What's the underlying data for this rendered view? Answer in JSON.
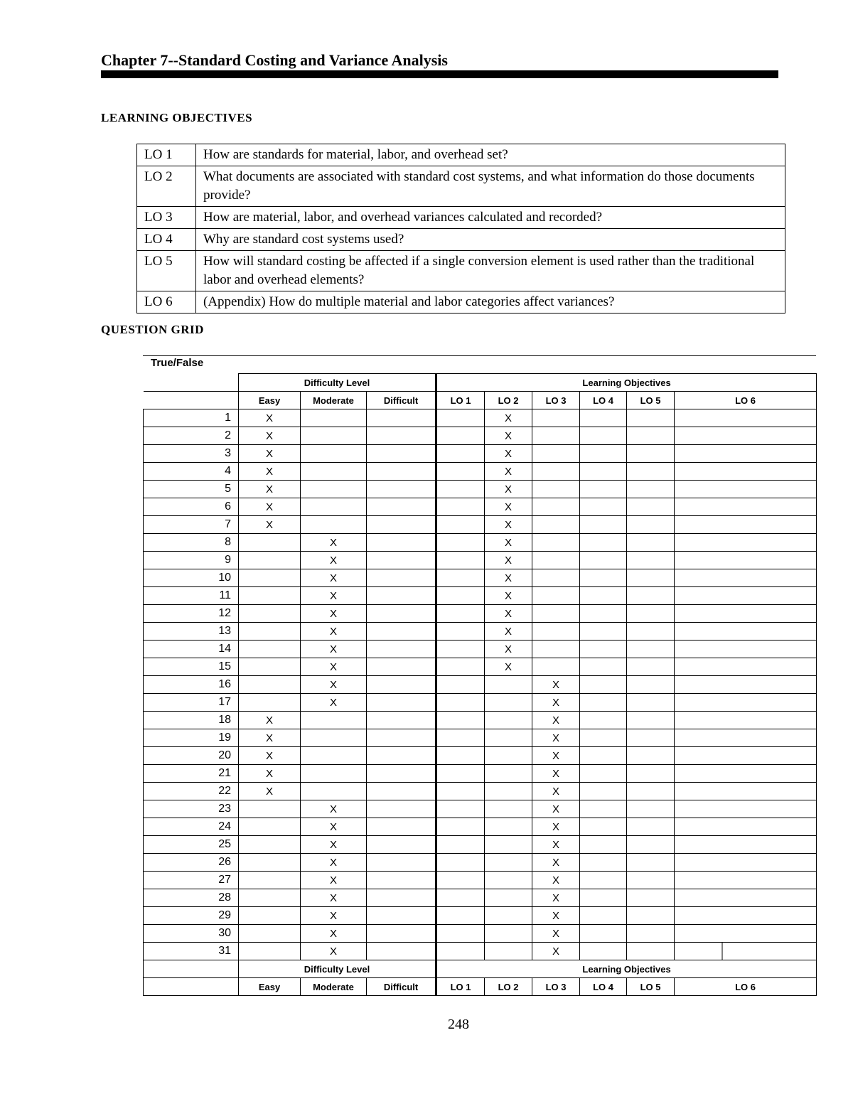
{
  "title": "Chapter 7--Standard Costing and Variance Analysis",
  "learning_objectives_heading": "LEARNING OBJECTIVES",
  "learning_objectives": [
    {
      "id": "LO 1",
      "text": "How are standards for material, labor, and overhead set?"
    },
    {
      "id": "LO 2",
      "text": "What documents are associated with standard cost systems, and what information do those documents provide?"
    },
    {
      "id": "LO 3",
      "text": "How are material, labor, and overhead variances calculated and recorded?"
    },
    {
      "id": "LO 4",
      "text": "Why are standard cost systems used?"
    },
    {
      "id": "LO 5",
      "text": "How will standard costing be affected if a single conversion element is used rather than the traditional labor and overhead elements?"
    },
    {
      "id": "LO 6",
      "text": "(Appendix) How do multiple material and labor categories affect variances?"
    }
  ],
  "question_grid_heading": "QUESTION GRID",
  "grid": {
    "section": "True/False",
    "difficulty_header": "Difficulty Level",
    "lo_header": "Learning Objectives",
    "difficulty_columns": [
      "Easy",
      "Moderate",
      "Difficult"
    ],
    "lo_columns": [
      "LO 1",
      "LO 2",
      "LO 3",
      "LO 4",
      "LO 5",
      "LO 6"
    ],
    "mark": "X",
    "rows": [
      {
        "q": "1",
        "difficulty": "Easy",
        "lo": "LO 2"
      },
      {
        "q": "2",
        "difficulty": "Easy",
        "lo": "LO 2"
      },
      {
        "q": "3",
        "difficulty": "Easy",
        "lo": "LO 2"
      },
      {
        "q": "4",
        "difficulty": "Easy",
        "lo": "LO 2"
      },
      {
        "q": "5",
        "difficulty": "Easy",
        "lo": "LO 2"
      },
      {
        "q": "6",
        "difficulty": "Easy",
        "lo": "LO 2"
      },
      {
        "q": "7",
        "difficulty": "Easy",
        "lo": "LO 2"
      },
      {
        "q": "8",
        "difficulty": "Moderate",
        "lo": "LO 2"
      },
      {
        "q": "9",
        "difficulty": "Moderate",
        "lo": "LO 2"
      },
      {
        "q": "10",
        "difficulty": "Moderate",
        "lo": "LO 2"
      },
      {
        "q": "11",
        "difficulty": "Moderate",
        "lo": "LO 2"
      },
      {
        "q": "12",
        "difficulty": "Moderate",
        "lo": "LO 2"
      },
      {
        "q": "13",
        "difficulty": "Moderate",
        "lo": "LO 2"
      },
      {
        "q": "14",
        "difficulty": "Moderate",
        "lo": "LO 2"
      },
      {
        "q": "15",
        "difficulty": "Moderate",
        "lo": "LO 2"
      },
      {
        "q": "16",
        "difficulty": "Moderate",
        "lo": "LO 3"
      },
      {
        "q": "17",
        "difficulty": "Moderate",
        "lo": "LO 3"
      },
      {
        "q": "18",
        "difficulty": "Easy",
        "lo": "LO 3"
      },
      {
        "q": "19",
        "difficulty": "Easy",
        "lo": "LO 3"
      },
      {
        "q": "20",
        "difficulty": "Easy",
        "lo": "LO 3"
      },
      {
        "q": "21",
        "difficulty": "Easy",
        "lo": "LO 3"
      },
      {
        "q": "22",
        "difficulty": "Easy",
        "lo": "LO 3"
      },
      {
        "q": "23",
        "difficulty": "Moderate",
        "lo": "LO 3"
      },
      {
        "q": "24",
        "difficulty": "Moderate",
        "lo": "LO 3"
      },
      {
        "q": "25",
        "difficulty": "Moderate",
        "lo": "LO 3"
      },
      {
        "q": "26",
        "difficulty": "Moderate",
        "lo": "LO 3"
      },
      {
        "q": "27",
        "difficulty": "Moderate",
        "lo": "LO 3"
      },
      {
        "q": "28",
        "difficulty": "Moderate",
        "lo": "LO 3"
      },
      {
        "q": "29",
        "difficulty": "Moderate",
        "lo": "LO 3"
      },
      {
        "q": "30",
        "difficulty": "Moderate",
        "lo": "LO 3"
      },
      {
        "q": "31",
        "difficulty": "Moderate",
        "lo": "LO 3"
      }
    ]
  },
  "page_number": "248"
}
